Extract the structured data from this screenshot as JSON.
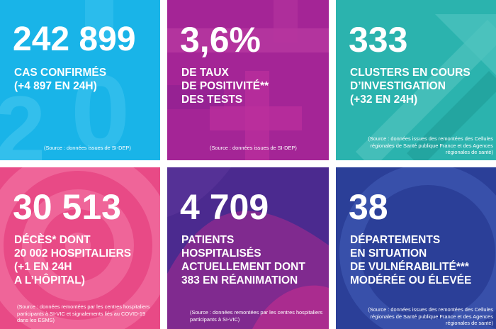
{
  "tiles": [
    {
      "value": "242 899",
      "lines": [
        "CAS CONFIRMÉS",
        "(+4 897 EN 24H)"
      ],
      "source": "(Source : données issues de SI-DEP)",
      "color": "#19b4e8",
      "icon": "calendar-24-icon"
    },
    {
      "value": "3,6%",
      "lines": [
        "DE TAUX",
        "DE POSITIVITÉ**",
        "DES TESTS"
      ],
      "source": "(Source : données issues de SI-DEP)",
      "color": "#a42596",
      "icon": "plus-icon"
    },
    {
      "value": "333",
      "lines": [
        "CLUSTERS EN COURS",
        "D’INVESTIGATION",
        "(+32 EN 24H)"
      ],
      "source": "(Source : données issues des remontées des Cellules régionales de Santé publique France et des Agences régionales de santé)",
      "color": "#2bb3ae",
      "icon": "arrow-up-icon"
    },
    {
      "value": "30 513",
      "lines": [
        "DÉCÈS* DONT",
        "20 002 HOSPITALIERS",
        "(+1 EN 24H",
        "A L’HÔPITAL)"
      ],
      "source": "(Source : données remontées par les centres hospitaliers participants à SI-VIC et signalements liés au COVID-19 dans les ESMS)",
      "color": "#e84a86",
      "icon": "target-icon"
    },
    {
      "value": "4 709",
      "lines": [
        "PATIENTS",
        "HOSPITALISÉS",
        "ACTUELLEMENT DONT",
        "383 EN RÉANIMATION"
      ],
      "source": "(Source : données remontées par les centres hospitaliers participants à SI-VIC)",
      "color": "#4b2a8f",
      "icon": "wave-shape-icon"
    },
    {
      "value": "38",
      "lines": [
        "DÉPARTEMENTS",
        "EN SITUATION",
        "DE VULNÉRABILITÉ***",
        "MODÉRÉE OU ÉLEVÉE"
      ],
      "source": "(Source : données issues des remontées des Cellules régionales de Santé publique France et des Agences régionales de santé)",
      "color": "#2b3f98",
      "icon": "speech-bubble-icon"
    }
  ]
}
